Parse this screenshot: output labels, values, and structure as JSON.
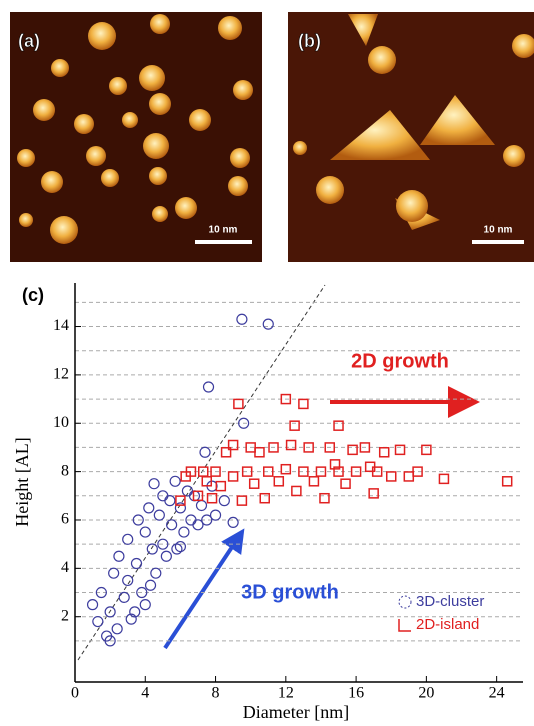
{
  "images": [
    {
      "label": "(a)",
      "scale": "10 nm"
    },
    {
      "label": "(b)",
      "scale": "10 nm"
    }
  ],
  "chart_data": {
    "type": "scatter",
    "panel_label": "(c)",
    "x_label": "Diameter [nm]",
    "y_label": "Height [AL]",
    "xlim": [
      0,
      25.5
    ],
    "ylim": [
      -0.7,
      15.8
    ],
    "xticks": [
      0,
      4,
      8,
      12,
      16,
      20,
      24
    ],
    "yticks": [
      2,
      4,
      6,
      8,
      10,
      12,
      14
    ],
    "ygrid": [
      1,
      2,
      3,
      4,
      5,
      6,
      7,
      8,
      9,
      10,
      11,
      12,
      13,
      14,
      15
    ],
    "legend": "lower right",
    "annotations": [
      {
        "text": "2D growth",
        "color": "#e02020"
      },
      {
        "text": "3D growth",
        "color": "#2a4fd6"
      }
    ],
    "series": [
      {
        "name": "3D-cluster",
        "color": "#3d3d9e",
        "marker": "circle",
        "x": [
          1,
          1.3,
          1.5,
          1.8,
          2,
          2.2,
          2.4,
          2.5,
          2.8,
          3,
          3,
          3.2,
          3.5,
          3.6,
          3.8,
          4,
          4,
          4.2,
          4.4,
          4.5,
          4.6,
          4.8,
          5,
          5,
          5.2,
          5.4,
          5.5,
          5.7,
          5.8,
          6,
          6.2,
          6.4,
          6.6,
          6.8,
          7,
          7.2,
          7.5,
          7.8,
          8,
          8.5,
          9,
          7.4,
          7.6,
          9.6,
          9.5,
          11,
          2,
          3.4,
          4.3,
          6
        ],
        "values": [
          2.5,
          1.8,
          3.0,
          1.2,
          2.2,
          3.8,
          1.5,
          4.5,
          2.8,
          3.5,
          5.2,
          1.9,
          4.2,
          6.0,
          3.0,
          5.5,
          2.5,
          6.5,
          4.8,
          7.5,
          3.8,
          6.2,
          5.0,
          7.0,
          4.5,
          6.8,
          5.8,
          7.6,
          4.8,
          6.5,
          5.5,
          7.2,
          6.0,
          7.0,
          5.8,
          6.6,
          6.0,
          7.4,
          6.2,
          6.8,
          5.9,
          8.8,
          11.5,
          10.0,
          14.3,
          14.1,
          1.0,
          2.2,
          3.3,
          4.9
        ]
      },
      {
        "name": "2D-island",
        "color": "#e02020",
        "marker": "square",
        "x": [
          6,
          6.3,
          6.6,
          7,
          7.3,
          7.5,
          7.8,
          8,
          8.3,
          8.6,
          9,
          9,
          9.3,
          9.5,
          9.8,
          10,
          10.2,
          10.5,
          10.8,
          11,
          11.3,
          11.6,
          12,
          12,
          12.3,
          12.6,
          13,
          13,
          13.3,
          13.6,
          14,
          14.2,
          14.5,
          15,
          15,
          15.4,
          15.8,
          16,
          16.5,
          17,
          17.2,
          17.6,
          18,
          18.5,
          19,
          19.5,
          20,
          21,
          24.6,
          12.5,
          14.8,
          16.8
        ],
        "values": [
          6.8,
          7.8,
          8.0,
          7.0,
          8.0,
          7.6,
          6.9,
          8.0,
          7.4,
          8.8,
          7.8,
          9.1,
          10.8,
          6.8,
          8.0,
          9.0,
          7.5,
          8.8,
          6.9,
          8.0,
          9.0,
          7.6,
          11.0,
          8.1,
          9.1,
          7.2,
          10.8,
          8.0,
          9.0,
          7.6,
          8.0,
          6.9,
          9.0,
          9.9,
          8.0,
          7.5,
          8.9,
          8.0,
          9.0,
          7.1,
          8.0,
          8.8,
          7.8,
          8.9,
          7.8,
          8.0,
          8.9,
          7.7,
          7.6,
          9.9,
          8.3,
          8.2
        ]
      }
    ]
  }
}
